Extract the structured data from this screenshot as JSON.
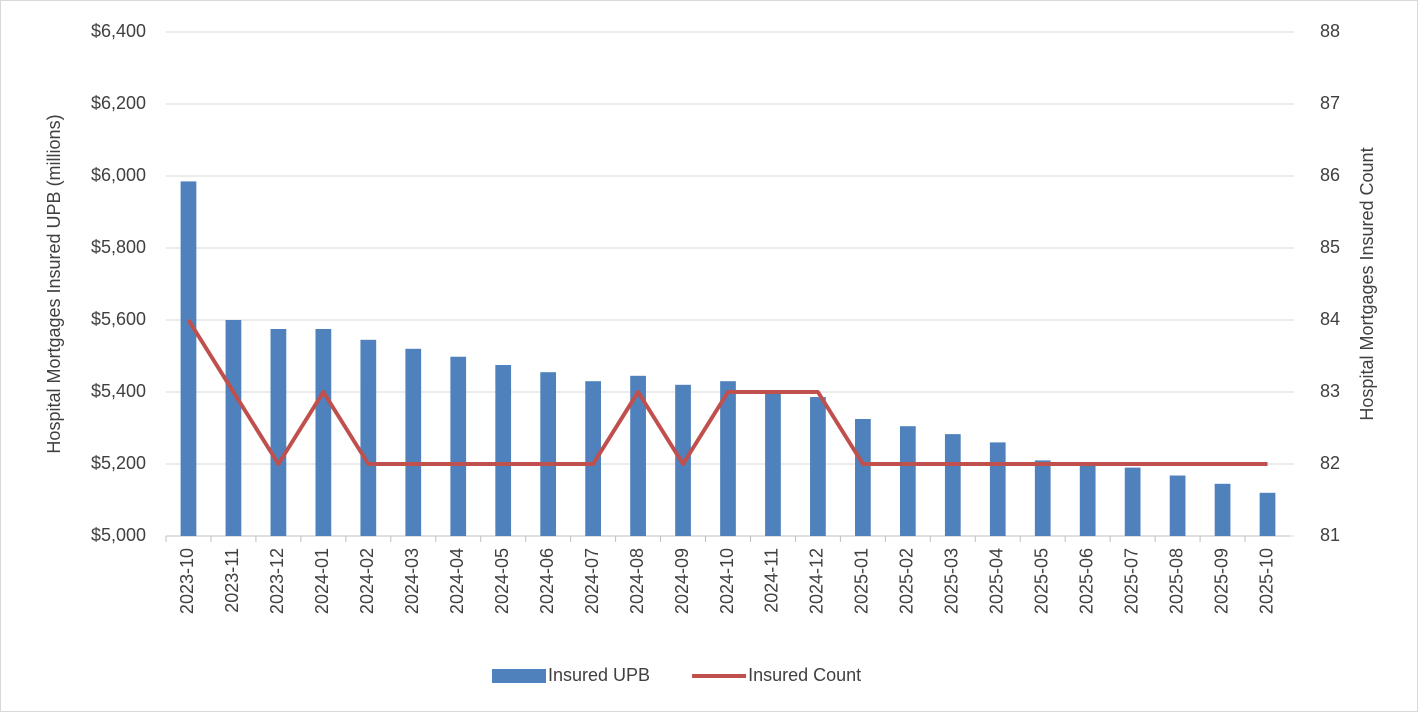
{
  "chart_data": {
    "type": "bar_line",
    "y_label": "Hospital Mortgages Insured UPB (millions)",
    "y2_label": "Hospital Mortgages Insured Count",
    "categories": [
      "2023-10",
      "2023-11",
      "2023-12",
      "2024-01",
      "2024-02",
      "2024-03",
      "2024-04",
      "2024-05",
      "2024-06",
      "2024-07",
      "2024-08",
      "2024-09",
      "2024-10",
      "2024-11",
      "2024-12",
      "2025-01",
      "2025-02",
      "2025-03",
      "2025-04",
      "2025-05",
      "2025-06",
      "2025-07",
      "2025-08",
      "2025-09",
      "2025-10"
    ],
    "series": [
      {
        "name": "Insured UPB",
        "type": "bar",
        "color": "#4f81bd",
        "values": [
          5985,
          5600,
          5575,
          5575,
          5545,
          5520,
          5498,
          5475,
          5455,
          5430,
          5445,
          5420,
          5430,
          5405,
          5386,
          5325,
          5305,
          5283,
          5260,
          5210,
          5205,
          5190,
          5168,
          5145,
          5120
        ]
      },
      {
        "name": "Insured Count",
        "type": "line",
        "axis": "y2",
        "color": "#c0504d",
        "values": [
          84,
          83,
          82,
          83,
          82,
          82,
          82,
          82,
          82,
          82,
          83,
          82,
          83,
          83,
          83,
          82,
          82,
          82,
          82,
          82,
          82,
          82,
          82,
          82,
          82
        ]
      }
    ],
    "ylim": [
      5000,
      6400
    ],
    "yticks": [
      {
        "value": 5000,
        "label": "$5,000"
      },
      {
        "value": 5200,
        "label": "$5,200"
      },
      {
        "value": 5400,
        "label": "$5,400"
      },
      {
        "value": 5600,
        "label": "$5,600"
      },
      {
        "value": 5800,
        "label": "$5,800"
      },
      {
        "value": 6000,
        "label": "$6,000"
      },
      {
        "value": 6200,
        "label": "$6,200"
      },
      {
        "value": 6400,
        "label": "$6,400"
      }
    ],
    "y2lim": [
      81,
      88
    ],
    "y2ticks": [
      81,
      82,
      83,
      84,
      85,
      86,
      87,
      88
    ],
    "grid": true,
    "legend": "bottom"
  }
}
